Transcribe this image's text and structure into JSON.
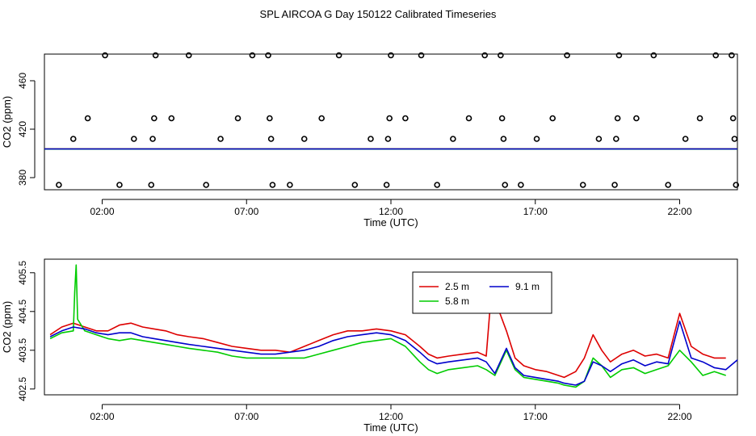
{
  "title": "SPL AIRCOA G  Day 150122  Calibrated Timeseries",
  "chart_data": [
    {
      "type": "scatter",
      "xlabel": "Time (UTC)",
      "ylabel": "CO2 (ppm)",
      "xlim": [
        0,
        24
      ],
      "ylim": [
        370,
        482
      ],
      "xticks": [
        2,
        7,
        12,
        17,
        22
      ],
      "xtick_labels": [
        "02:00",
        "07:00",
        "12:00",
        "17:00",
        "22:00"
      ],
      "yticks": [
        380,
        420,
        460
      ],
      "ytick_labels": [
        "380",
        "420",
        "460"
      ],
      "markers": [
        {
          "x": 0.5,
          "y": 374
        },
        {
          "x": 1.0,
          "y": 412
        },
        {
          "x": 1.5,
          "y": 429
        },
        {
          "x": 2.1,
          "y": 481
        },
        {
          "x": 2.6,
          "y": 374
        },
        {
          "x": 3.1,
          "y": 412
        },
        {
          "x": 3.7,
          "y": 374
        },
        {
          "x": 3.75,
          "y": 412
        },
        {
          "x": 3.8,
          "y": 429
        },
        {
          "x": 3.85,
          "y": 481
        },
        {
          "x": 4.4,
          "y": 429
        },
        {
          "x": 5.0,
          "y": 481
        },
        {
          "x": 5.6,
          "y": 374
        },
        {
          "x": 6.1,
          "y": 412
        },
        {
          "x": 6.7,
          "y": 429
        },
        {
          "x": 7.2,
          "y": 481
        },
        {
          "x": 7.75,
          "y": 481
        },
        {
          "x": 7.8,
          "y": 429
        },
        {
          "x": 7.85,
          "y": 412
        },
        {
          "x": 7.9,
          "y": 374
        },
        {
          "x": 8.5,
          "y": 374
        },
        {
          "x": 9.0,
          "y": 412
        },
        {
          "x": 9.6,
          "y": 429
        },
        {
          "x": 10.2,
          "y": 481
        },
        {
          "x": 10.75,
          "y": 374
        },
        {
          "x": 11.3,
          "y": 412
        },
        {
          "x": 11.85,
          "y": 374
        },
        {
          "x": 11.9,
          "y": 412
        },
        {
          "x": 11.95,
          "y": 429
        },
        {
          "x": 12.0,
          "y": 481
        },
        {
          "x": 12.5,
          "y": 429
        },
        {
          "x": 13.05,
          "y": 481
        },
        {
          "x": 13.6,
          "y": 374
        },
        {
          "x": 14.15,
          "y": 412
        },
        {
          "x": 14.7,
          "y": 429
        },
        {
          "x": 15.25,
          "y": 481
        },
        {
          "x": 15.8,
          "y": 481
        },
        {
          "x": 15.85,
          "y": 429
        },
        {
          "x": 15.9,
          "y": 412
        },
        {
          "x": 15.95,
          "y": 374
        },
        {
          "x": 16.5,
          "y": 374
        },
        {
          "x": 17.05,
          "y": 412
        },
        {
          "x": 17.6,
          "y": 429
        },
        {
          "x": 18.1,
          "y": 481
        },
        {
          "x": 18.65,
          "y": 374
        },
        {
          "x": 19.2,
          "y": 412
        },
        {
          "x": 19.75,
          "y": 374
        },
        {
          "x": 19.8,
          "y": 412
        },
        {
          "x": 19.85,
          "y": 429
        },
        {
          "x": 19.9,
          "y": 481
        },
        {
          "x": 20.5,
          "y": 429
        },
        {
          "x": 21.1,
          "y": 481
        },
        {
          "x": 21.6,
          "y": 374
        },
        {
          "x": 22.2,
          "y": 412
        },
        {
          "x": 22.7,
          "y": 429
        },
        {
          "x": 23.25,
          "y": 481
        },
        {
          "x": 23.8,
          "y": 481
        },
        {
          "x": 23.85,
          "y": 429
        },
        {
          "x": 23.9,
          "y": 412
        },
        {
          "x": 23.95,
          "y": 374
        }
      ],
      "series": [
        {
          "name": "2.5 m",
          "color": "#dd0000",
          "x": [
            0,
            24
          ],
          "y": [
            403.8,
            403.8
          ]
        },
        {
          "name": "5.8 m",
          "color": "#00cc00",
          "x": [
            0,
            24
          ],
          "y": [
            403.6,
            403.6
          ]
        },
        {
          "name": "9.1 m",
          "color": "#0000cc",
          "x": [
            0,
            24
          ],
          "y": [
            403.7,
            403.7
          ]
        }
      ]
    },
    {
      "type": "line",
      "xlabel": "Time (UTC)",
      "ylabel": "CO2 (ppm)",
      "xlim": [
        0,
        24
      ],
      "ylim": [
        402.35,
        405.85
      ],
      "xticks": [
        2,
        7,
        12,
        17,
        22
      ],
      "xtick_labels": [
        "02:00",
        "07:00",
        "12:00",
        "17:00",
        "22:00"
      ],
      "yticks": [
        402.5,
        403.5,
        404.5,
        405.5
      ],
      "ytick_labels": [
        "402.5",
        "403.5",
        "404.5",
        "405.5"
      ],
      "legend_position": "top-center",
      "series": [
        {
          "name": "2.5 m",
          "color": "#dd0000",
          "x": [
            0.2,
            0.6,
            1.0,
            1.4,
            1.8,
            2.2,
            2.6,
            3.0,
            3.4,
            3.8,
            4.2,
            4.6,
            5.0,
            5.5,
            6.0,
            6.5,
            7.0,
            7.5,
            8.0,
            8.5,
            9.0,
            9.5,
            10.0,
            10.5,
            11.0,
            11.5,
            12.0,
            12.5,
            13.0,
            13.3,
            13.6,
            14.0,
            14.5,
            15.0,
            15.3,
            15.5,
            15.7,
            16.0,
            16.3,
            16.6,
            17.0,
            17.4,
            17.8,
            18.0,
            18.4,
            18.7,
            19.0,
            19.3,
            19.6,
            20.0,
            20.4,
            20.8,
            21.2,
            21.6,
            22.0,
            22.4,
            22.8,
            23.2,
            23.6
          ],
          "y": [
            403.9,
            404.1,
            404.2,
            404.1,
            404.0,
            404.0,
            404.15,
            404.2,
            404.1,
            404.05,
            404.0,
            403.9,
            403.85,
            403.8,
            403.7,
            403.6,
            403.55,
            403.5,
            403.5,
            403.45,
            403.6,
            403.75,
            403.9,
            404.0,
            404.0,
            404.05,
            404.0,
            403.9,
            403.6,
            403.4,
            403.3,
            403.35,
            403.4,
            403.45,
            403.35,
            405.2,
            404.6,
            404.0,
            403.3,
            403.1,
            403.0,
            402.95,
            402.85,
            402.8,
            402.95,
            403.3,
            403.9,
            403.5,
            403.2,
            403.4,
            403.5,
            403.35,
            403.4,
            403.3,
            404.45,
            403.6,
            403.4,
            403.3,
            403.3
          ]
        },
        {
          "name": "5.8 m",
          "color": "#00cc00",
          "x": [
            0.2,
            0.6,
            1.0,
            1.05,
            1.1,
            1.15,
            1.4,
            1.8,
            2.2,
            2.6,
            3.0,
            3.4,
            3.8,
            4.2,
            4.6,
            5.0,
            5.5,
            6.0,
            6.5,
            7.0,
            7.5,
            8.0,
            8.5,
            9.0,
            9.5,
            10.0,
            10.5,
            11.0,
            11.5,
            12.0,
            12.5,
            13.0,
            13.3,
            13.6,
            14.0,
            14.5,
            15.0,
            15.3,
            15.6,
            16.0,
            16.3,
            16.6,
            17.0,
            17.4,
            17.8,
            18.0,
            18.4,
            18.7,
            19.0,
            19.3,
            19.6,
            20.0,
            20.4,
            20.8,
            21.2,
            21.6,
            22.0,
            22.4,
            22.8,
            23.2,
            23.6
          ],
          "y": [
            403.8,
            403.95,
            404.0,
            405.0,
            405.7,
            404.3,
            404.0,
            403.9,
            403.8,
            403.75,
            403.8,
            403.75,
            403.7,
            403.65,
            403.6,
            403.55,
            403.5,
            403.45,
            403.35,
            403.3,
            403.3,
            403.3,
            403.3,
            403.3,
            403.4,
            403.5,
            403.6,
            403.7,
            403.75,
            403.8,
            403.6,
            403.2,
            403.0,
            402.9,
            403.0,
            403.05,
            403.1,
            403.0,
            402.85,
            403.5,
            403.0,
            402.8,
            402.75,
            402.7,
            402.65,
            402.6,
            402.55,
            402.7,
            403.3,
            403.1,
            402.8,
            403.0,
            403.05,
            402.9,
            403.0,
            403.1,
            403.5,
            403.2,
            402.85,
            402.95,
            402.85
          ]
        },
        {
          "name": "9.1 m",
          "color": "#0000cc",
          "x": [
            0.2,
            0.6,
            1.0,
            1.4,
            1.8,
            2.2,
            2.6,
            3.0,
            3.4,
            3.8,
            4.2,
            4.6,
            5.0,
            5.5,
            6.0,
            6.5,
            7.0,
            7.5,
            8.0,
            8.5,
            9.0,
            9.5,
            10.0,
            10.5,
            11.0,
            11.5,
            12.0,
            12.5,
            13.0,
            13.3,
            13.6,
            14.0,
            14.5,
            15.0,
            15.3,
            15.6,
            16.0,
            16.3,
            16.6,
            17.0,
            17.4,
            17.8,
            18.0,
            18.4,
            18.7,
            19.0,
            19.3,
            19.6,
            20.0,
            20.4,
            20.8,
            21.2,
            21.6,
            22.0,
            22.4,
            22.8,
            23.2,
            23.6,
            24.0
          ],
          "y": [
            403.85,
            404.0,
            404.1,
            404.05,
            403.95,
            403.9,
            403.95,
            403.95,
            403.85,
            403.8,
            403.75,
            403.7,
            403.65,
            403.6,
            403.55,
            403.5,
            403.45,
            403.4,
            403.4,
            403.45,
            403.5,
            403.6,
            403.75,
            403.85,
            403.9,
            403.95,
            403.9,
            403.75,
            403.45,
            403.25,
            403.15,
            403.2,
            403.25,
            403.3,
            403.2,
            402.9,
            403.55,
            403.05,
            402.85,
            402.8,
            402.75,
            402.7,
            402.65,
            402.6,
            402.7,
            403.2,
            403.1,
            402.95,
            403.15,
            403.25,
            403.1,
            403.2,
            403.15,
            404.25,
            403.3,
            403.2,
            403.05,
            403.0,
            403.25
          ]
        }
      ]
    }
  ]
}
